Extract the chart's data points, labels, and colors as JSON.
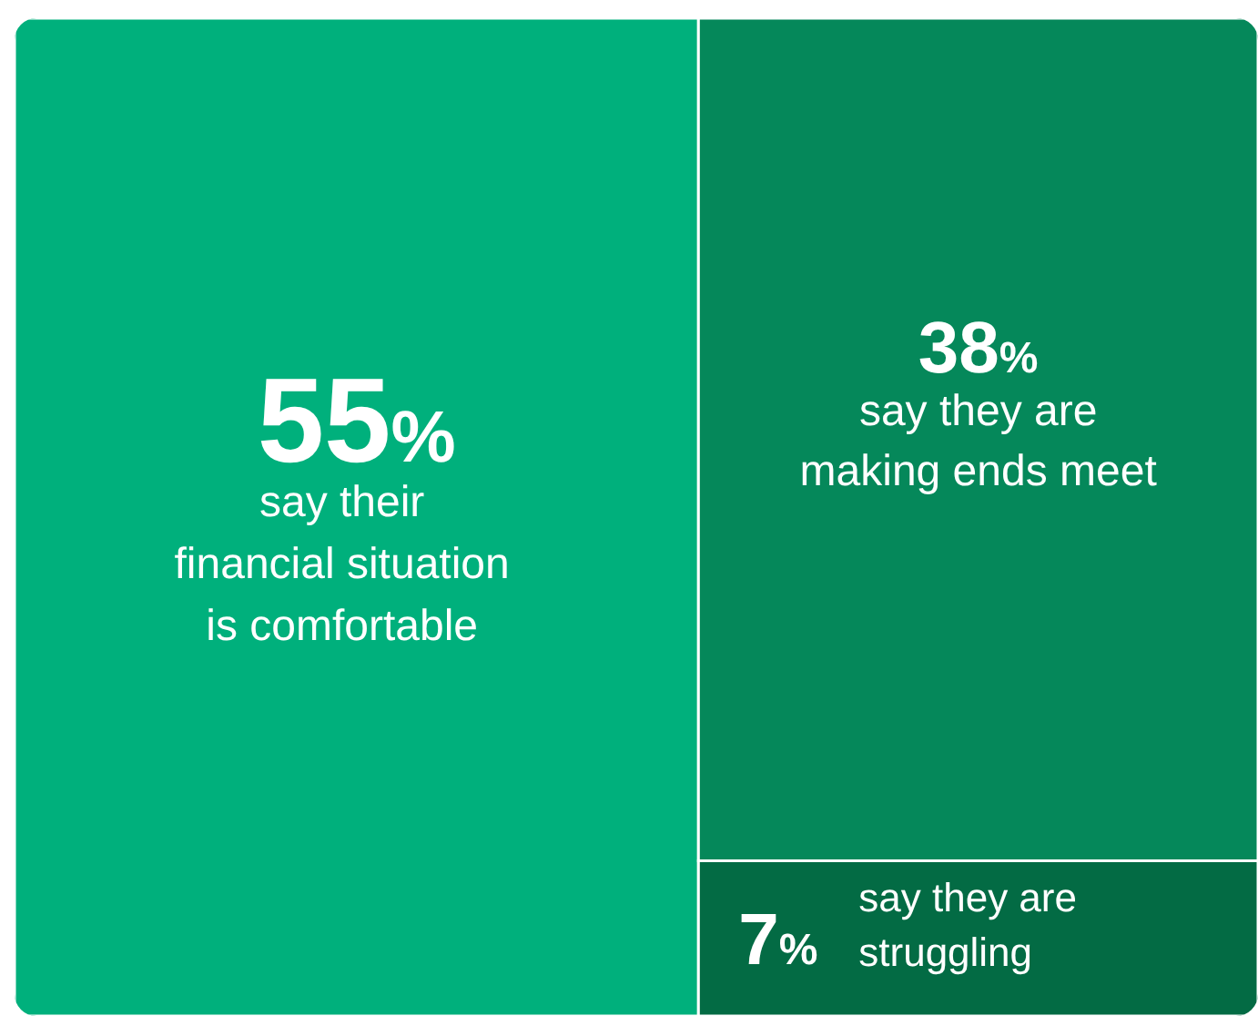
{
  "chart_data": {
    "type": "other",
    "categories": [
      "say their\nfinancial situation\nis comfortable",
      "say they are\nmaking ends meet",
      "say they are\nstruggling"
    ],
    "values": [
      55,
      38,
      7
    ],
    "value_labels": [
      "55%",
      "38%",
      "7%"
    ],
    "colors": [
      "#00b07c",
      "#05885a",
      "#036b44"
    ]
  }
}
